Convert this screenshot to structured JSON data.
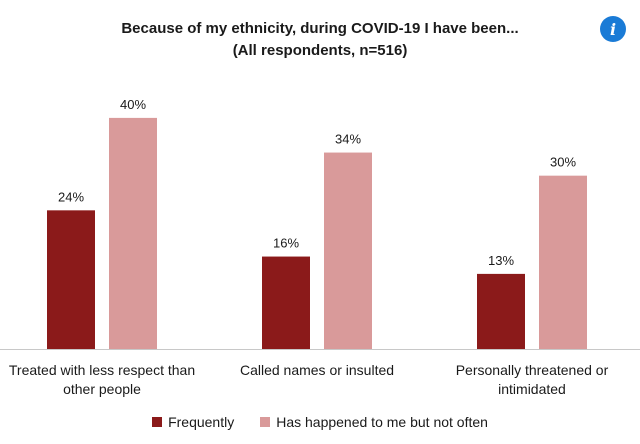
{
  "chart_data": {
    "type": "bar",
    "title": "Because of my ethnicity, during COVID-19 I have been...",
    "subtitle": "(All respondents, n=516)",
    "categories": [
      "Treated with less respect than other people",
      "Called names or insulted",
      "Personally threatened or intimidated"
    ],
    "series": [
      {
        "name": "Frequently",
        "values": [
          24,
          16,
          13
        ],
        "labels": [
          "24%",
          "16%",
          "13%"
        ],
        "color": "#8b1a1a"
      },
      {
        "name": "Has happened to me but not often",
        "values": [
          40,
          34,
          30
        ],
        "labels": [
          "40%",
          "34%",
          "30%"
        ],
        "color": "#d99a9a"
      }
    ],
    "ylim": [
      0,
      45
    ],
    "grid": false,
    "legend_position": "bottom",
    "axis_color": "#c8c8c8"
  },
  "info_icon": "info-icon"
}
